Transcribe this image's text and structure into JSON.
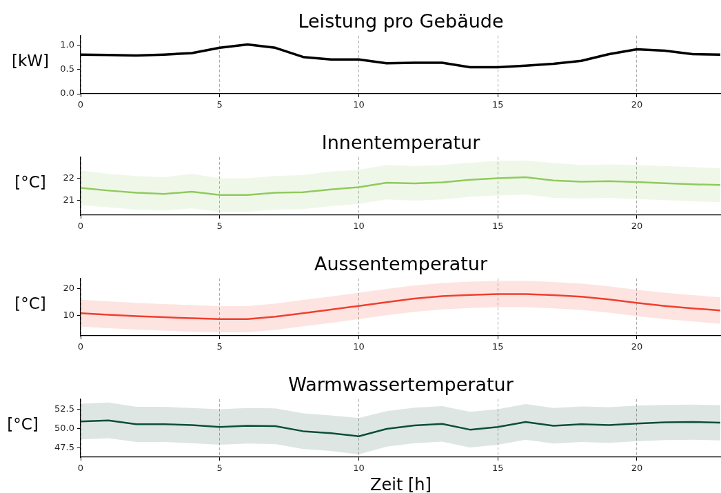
{
  "chart_data": [
    {
      "type": "line",
      "title": "Leistung pro Gebäude",
      "ylabel": "[kW]",
      "x": [
        0,
        1,
        2,
        3,
        4,
        5,
        6,
        7,
        8,
        9,
        10,
        11,
        12,
        13,
        14,
        15,
        16,
        17,
        18,
        19,
        20,
        21,
        22,
        23
      ],
      "series": [
        {
          "color": "#000000",
          "values": [
            0.81,
            0.8,
            0.79,
            0.81,
            0.84,
            0.95,
            1.02,
            0.95,
            0.76,
            0.71,
            0.71,
            0.63,
            0.64,
            0.64,
            0.55,
            0.55,
            0.58,
            0.62,
            0.68,
            0.82,
            0.92,
            0.89,
            0.82,
            0.81
          ]
        }
      ],
      "xlim": [
        0,
        23
      ],
      "xticks": [
        0,
        5,
        10,
        15,
        20
      ],
      "ylim": [
        0,
        1.2
      ],
      "yticks": [
        {
          "value": 0,
          "label": "0.0"
        },
        {
          "value": 0.5,
          "label": "0.5"
        },
        {
          "value": 1,
          "label": "1.0"
        }
      ],
      "grid": "x"
    },
    {
      "type": "line",
      "title": "Innentemperatur",
      "ylabel": "[°C]",
      "x": [
        0,
        1,
        2,
        3,
        4,
        5,
        6,
        7,
        8,
        9,
        10,
        11,
        12,
        13,
        14,
        15,
        16,
        17,
        18,
        19,
        20,
        21,
        22,
        23
      ],
      "series": [
        {
          "color": "#8fca5c",
          "values": [
            21.57,
            21.45,
            21.35,
            21.3,
            21.4,
            21.25,
            21.25,
            21.35,
            21.38,
            21.5,
            21.6,
            21.8,
            21.77,
            21.82,
            21.93,
            22.0,
            22.05,
            21.9,
            21.85,
            21.87,
            21.83,
            21.78,
            21.73,
            21.7
          ],
          "upper": [
            22.35,
            22.2,
            22.1,
            22.05,
            22.2,
            22.0,
            22.0,
            22.1,
            22.15,
            22.3,
            22.38,
            22.6,
            22.55,
            22.6,
            22.7,
            22.78,
            22.8,
            22.68,
            22.6,
            22.62,
            22.6,
            22.55,
            22.5,
            22.45
          ],
          "lower": [
            20.8,
            20.7,
            20.6,
            20.55,
            20.65,
            20.5,
            20.5,
            20.6,
            20.62,
            20.75,
            20.85,
            21.05,
            21.0,
            21.05,
            21.17,
            21.23,
            21.27,
            21.12,
            21.1,
            21.12,
            21.07,
            21.02,
            20.97,
            20.93
          ]
        }
      ],
      "xlim": [
        0,
        23
      ],
      "xticks": [
        0,
        5,
        10,
        15,
        20
      ],
      "ylim": [
        20.35,
        22.95
      ],
      "yticks": [
        21,
        22
      ],
      "grid": "x"
    },
    {
      "type": "line",
      "title": "Aussentemperatur",
      "ylabel": "[°C]",
      "x": [
        0,
        1,
        2,
        3,
        4,
        5,
        6,
        7,
        8,
        9,
        10,
        11,
        12,
        13,
        14,
        15,
        16,
        17,
        18,
        19,
        20,
        21,
        22,
        23
      ],
      "series": [
        {
          "color": "#f23e2e",
          "values": [
            10.8,
            10.2,
            9.7,
            9.3,
            8.9,
            8.6,
            8.6,
            9.5,
            10.8,
            12.1,
            13.5,
            14.9,
            16.2,
            17.1,
            17.6,
            17.9,
            17.9,
            17.5,
            16.9,
            15.9,
            14.6,
            13.5,
            12.6,
            11.8
          ],
          "upper": [
            15.8,
            15.2,
            14.6,
            14.2,
            13.8,
            13.4,
            13.4,
            14.4,
            15.7,
            17.0,
            18.4,
            19.8,
            21.1,
            22.0,
            22.5,
            22.8,
            22.8,
            22.4,
            21.8,
            20.8,
            19.5,
            18.4,
            17.5,
            16.7
          ],
          "lower": [
            5.8,
            5.2,
            4.7,
            4.3,
            3.9,
            3.7,
            3.7,
            4.6,
            5.9,
            7.2,
            8.6,
            10.0,
            11.3,
            12.2,
            12.7,
            13.0,
            13.0,
            12.6,
            12.0,
            11.0,
            9.7,
            8.6,
            7.7,
            6.9
          ]
        }
      ],
      "xlim": [
        0,
        23
      ],
      "xticks": [
        0,
        5,
        10,
        15,
        20
      ],
      "ylim": [
        2.4,
        23.7
      ],
      "yticks": [
        10,
        20
      ],
      "grid": "x"
    },
    {
      "type": "line",
      "title": "Warmwassertemperatur",
      "ylabel": "[°C]",
      "xlabel": "Zeit [h]",
      "x": [
        0,
        1,
        2,
        3,
        4,
        5,
        6,
        7,
        8,
        9,
        10,
        11,
        12,
        13,
        14,
        15,
        16,
        17,
        18,
        19,
        20,
        21,
        22,
        23
      ],
      "series": [
        {
          "color": "#0b4d3b",
          "values": [
            50.9,
            51.05,
            50.55,
            50.55,
            50.45,
            50.2,
            50.35,
            50.3,
            49.65,
            49.4,
            49.0,
            49.95,
            50.4,
            50.6,
            49.85,
            50.2,
            50.85,
            50.35,
            50.55,
            50.45,
            50.65,
            50.8,
            50.85,
            50.75
          ],
          "upper": [
            53.2,
            53.35,
            52.8,
            52.8,
            52.65,
            52.5,
            52.65,
            52.6,
            51.95,
            51.7,
            51.35,
            52.25,
            52.7,
            52.9,
            52.15,
            52.5,
            53.15,
            52.65,
            52.85,
            52.75,
            52.95,
            53.05,
            53.1,
            53.0
          ],
          "lower": [
            48.6,
            48.75,
            48.25,
            48.25,
            48.1,
            47.9,
            48.05,
            48.0,
            47.35,
            47.1,
            46.65,
            47.65,
            48.1,
            48.3,
            47.55,
            47.9,
            48.55,
            48.05,
            48.25,
            48.15,
            48.35,
            48.5,
            48.55,
            48.45
          ]
        }
      ],
      "xlim": [
        0,
        23
      ],
      "xticks": [
        0,
        5,
        10,
        15,
        20
      ],
      "ylim": [
        46.3,
        53.8
      ],
      "yticks": [
        {
          "value": 47.5,
          "label": "47.5"
        },
        {
          "value": 50,
          "label": "50.0"
        },
        {
          "value": 52.5,
          "label": "52.5"
        }
      ],
      "grid": "x"
    }
  ]
}
